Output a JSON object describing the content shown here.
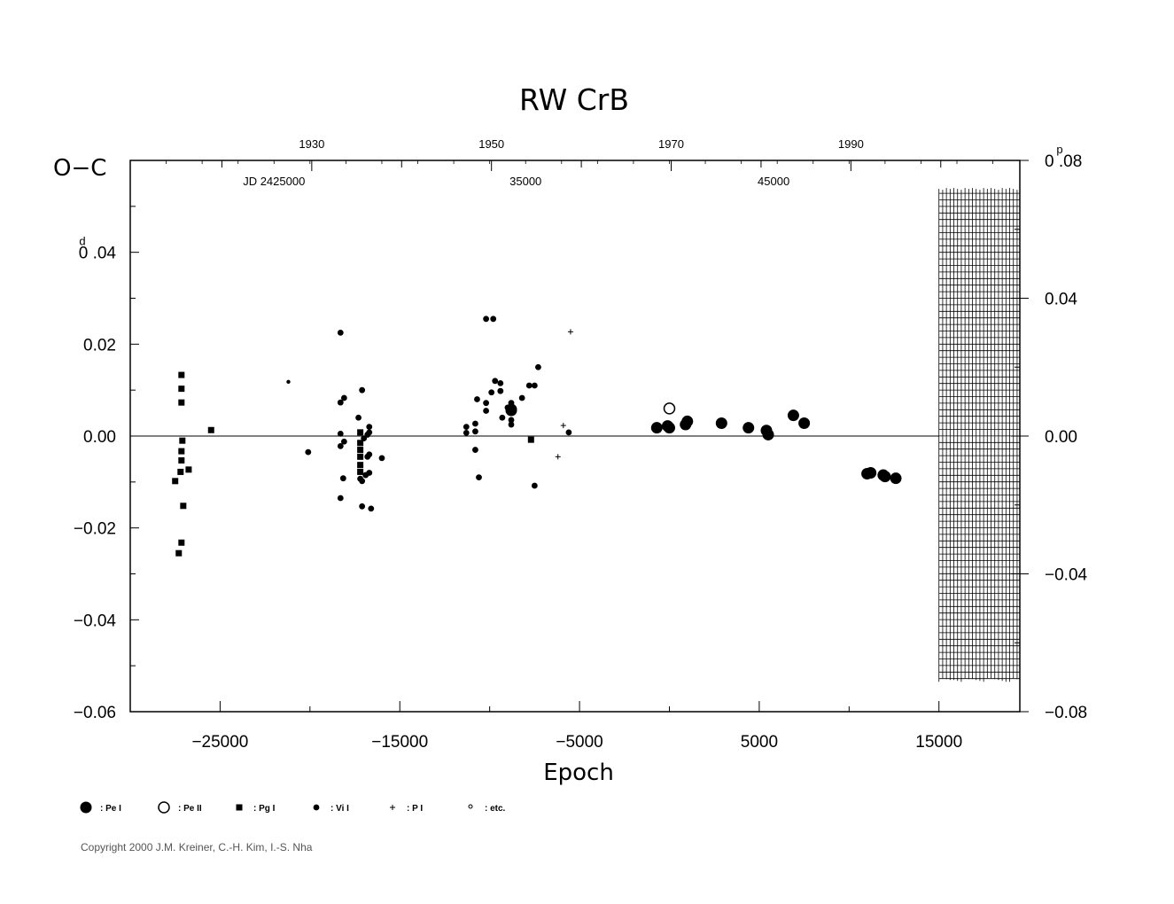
{
  "chart_data": {
    "type": "scatter",
    "title": "RW  CrB",
    "ylabel": "O−C",
    "xlabel": "Epoch",
    "left_unit_mark": "d",
    "right_unit_mark": "p",
    "xlim": [
      -30000,
      19500
    ],
    "ylim": [
      -0.06,
      0.06
    ],
    "right_ylim": [
      -0.08,
      0.08
    ],
    "x_ticks": [
      {
        "v": -25000,
        "label": "−25000"
      },
      {
        "v": -15000,
        "label": "−15000"
      },
      {
        "v": -5000,
        "label": "−5000"
      },
      {
        "v": 5000,
        "label": "5000"
      },
      {
        "v": 15000,
        "label": "15000"
      }
    ],
    "y_ticks": [
      {
        "v": -0.06,
        "label": "−0.06"
      },
      {
        "v": -0.04,
        "label": "−0.04"
      },
      {
        "v": -0.02,
        "label": "−0.02"
      },
      {
        "v": 0.0,
        "label": "0.00"
      },
      {
        "v": 0.02,
        "label": "0.02"
      },
      {
        "v": 0.04,
        "label": "0 .04"
      }
    ],
    "right_y_ticks": [
      {
        "v": -0.08,
        "label": "−0.08"
      },
      {
        "v": -0.04,
        "label": "−0.04"
      },
      {
        "v": 0.0,
        "label": "0.00"
      },
      {
        "v": 0.04,
        "label": "0.04"
      },
      {
        "v": 0.08,
        "label": "0 .08"
      }
    ],
    "year_ticks": [
      {
        "x": -19900,
        "label": "1930"
      },
      {
        "x": -9900,
        "label": "1950"
      },
      {
        "x": 100,
        "label": "1970"
      },
      {
        "x": 10100,
        "label": "1990"
      }
    ],
    "year_minor_x": [
      -24900,
      -14900,
      -4900,
      5100,
      15100
    ],
    "jd_labels": [
      {
        "x": -22000,
        "label": "JD  2425000"
      },
      {
        "x": -8000,
        "label": "35000"
      },
      {
        "x": 5800,
        "label": "45000"
      }
    ],
    "legend": [
      {
        "symbol": "big-filled-circle",
        "label": ": Pe  I"
      },
      {
        "symbol": "open-circle",
        "label": ": Pe  II"
      },
      {
        "symbol": "square",
        "label": ": Pg  I"
      },
      {
        "symbol": "small-filled-circle",
        "label": ": Vi  I"
      },
      {
        "symbol": "plus",
        "label": ": P  I"
      },
      {
        "symbol": "tiny-circle",
        "label": ": etc."
      }
    ],
    "series": [
      {
        "name": "Pe I",
        "marker": "big-filled-circle",
        "points": [
          [
            -700,
            0.0018
          ],
          [
            -100,
            0.0022
          ],
          [
            0,
            0.0018
          ],
          [
            900,
            0.0025
          ],
          [
            1000,
            0.0032
          ],
          [
            2900,
            0.0028
          ],
          [
            4400,
            0.0018
          ],
          [
            5400,
            0.0012
          ],
          [
            5500,
            0.0003
          ],
          [
            6900,
            0.0045
          ],
          [
            7500,
            0.0028
          ],
          [
            11000,
            -0.0082
          ],
          [
            11200,
            -0.008
          ],
          [
            11900,
            -0.0085
          ],
          [
            12000,
            -0.0088
          ],
          [
            12600,
            -0.0092
          ]
        ]
      },
      {
        "name": "Pe II",
        "marker": "open-circle",
        "points": [
          [
            0,
            0.006
          ]
        ]
      },
      {
        "name": "Pg I",
        "marker": "square",
        "points": [
          [
            -27150,
            0.0133
          ],
          [
            -27150,
            0.0103
          ],
          [
            -27150,
            0.0073
          ],
          [
            -27100,
            -0.001
          ],
          [
            -27150,
            -0.0033
          ],
          [
            -27150,
            -0.0053
          ],
          [
            -27500,
            -0.0098
          ],
          [
            -27200,
            -0.0078
          ],
          [
            -26750,
            -0.0073
          ],
          [
            -27050,
            -0.0152
          ],
          [
            -27150,
            -0.0232
          ],
          [
            -27300,
            -0.0255
          ],
          [
            -25500,
            0.0013
          ],
          [
            -17200,
            0.0008
          ],
          [
            -17200,
            -0.0015
          ],
          [
            -17200,
            -0.003
          ],
          [
            -17200,
            -0.0045
          ],
          [
            -17200,
            -0.0063
          ],
          [
            -17200,
            -0.0078
          ],
          [
            -7700,
            -0.0008
          ]
        ]
      },
      {
        "name": "Vi I",
        "marker": "small-filled-circle",
        "points": [
          [
            -18300,
            0.0225
          ],
          [
            -18300,
            0.0073
          ],
          [
            -18100,
            0.0083
          ],
          [
            -18300,
            0.0005
          ],
          [
            -18100,
            -0.0012
          ],
          [
            -18300,
            -0.0022
          ],
          [
            -18150,
            -0.0092
          ],
          [
            -18300,
            -0.0135
          ],
          [
            -17300,
            0.004
          ],
          [
            -17100,
            0.01
          ],
          [
            -17000,
            -0.0005
          ],
          [
            -16800,
            0.0003
          ],
          [
            -16700,
            0.002
          ],
          [
            -16700,
            0.0008
          ],
          [
            -16800,
            -0.0045
          ],
          [
            -16700,
            -0.004
          ],
          [
            -16900,
            -0.0085
          ],
          [
            -16700,
            -0.008
          ],
          [
            -17200,
            -0.0093
          ],
          [
            -17100,
            -0.0098
          ],
          [
            -17100,
            -0.0153
          ],
          [
            -16600,
            -0.0158
          ],
          [
            -16000,
            -0.0048
          ],
          [
            -20100,
            -0.0035
          ],
          [
            -11300,
            0.002
          ],
          [
            -11300,
            0.0007
          ],
          [
            -10800,
            0.0027
          ],
          [
            -10800,
            0.001
          ],
          [
            -10800,
            -0.003
          ],
          [
            -10600,
            -0.009
          ],
          [
            -10700,
            0.008
          ],
          [
            -10200,
            0.0255
          ],
          [
            -9800,
            0.0255
          ],
          [
            -10200,
            0.0072
          ],
          [
            -10200,
            0.0055
          ],
          [
            -9900,
            0.0095
          ],
          [
            -9700,
            0.012
          ],
          [
            -9400,
            0.0115
          ],
          [
            -9400,
            0.0098
          ],
          [
            -9300,
            0.004
          ],
          [
            -9000,
            0.0062
          ],
          [
            -8800,
            0.0072
          ],
          [
            -8800,
            0.0035
          ],
          [
            -8800,
            0.0025
          ],
          [
            -8200,
            0.0083
          ],
          [
            -7800,
            0.011
          ],
          [
            -7500,
            0.011
          ],
          [
            -7300,
            0.015
          ],
          [
            -7500,
            -0.0108
          ],
          [
            -5600,
            0.0008
          ]
        ]
      },
      {
        "name": "Vi I (large)",
        "marker": "big-filled-circle",
        "points": [
          [
            -8800,
            0.0058
          ],
          [
            -8800,
            0.0056
          ]
        ]
      },
      {
        "name": "P I",
        "marker": "plus",
        "points": [
          [
            -5500,
            0.0227
          ],
          [
            -5900,
            0.0023
          ],
          [
            -6200,
            -0.0045
          ]
        ]
      },
      {
        "name": "etc.",
        "marker": "tiny-circle",
        "points": [
          [
            -21200,
            0.0118
          ]
        ]
      }
    ],
    "hatched_region": {
      "x_from": 15000,
      "x_to": 19500,
      "y_from": -0.0535,
      "y_to": 0.054
    }
  },
  "copyright": "Copyright 2000 J.M. Kreiner, C.-H. Kim, I.-S. Nha"
}
